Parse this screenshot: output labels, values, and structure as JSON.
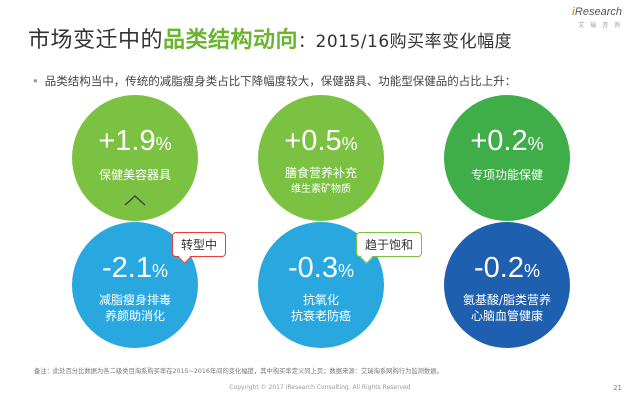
{
  "header": {
    "title_prefix": "市场变迁中的",
    "title_highlight": "品类结构动向",
    "title_suffix": "：2015/16购买率变化幅度",
    "brand": "Research",
    "brand_i": "i",
    "brand_sub": "艾 瑞 咨 询"
  },
  "bullet": {
    "text": "品类结构当中，传统的减脂瘦身类占比下降幅度较大，保健器具、功能型保健品的占比上升："
  },
  "circles": [
    {
      "value": "+1.9",
      "unit": "%",
      "label": "保健美容器具",
      "sublabel": "",
      "color": "#7cc242"
    },
    {
      "value": "+0.5",
      "unit": "%",
      "label": "膳食营养补充",
      "sublabel": "维生素矿物质",
      "color": "#7cc242"
    },
    {
      "value": "+0.2",
      "unit": "%",
      "label": "专项功能保健",
      "sublabel": "",
      "color": "#3fae49"
    },
    {
      "value": "-2.1",
      "unit": "%",
      "label": "减脂瘦身排毒",
      "sublabel": "养颜助消化",
      "color": "#29a8e0"
    },
    {
      "value": "-0.3",
      "unit": "%",
      "label": "抗氧化",
      "sublabel": "抗衰老防癌",
      "color": "#29a8e0"
    },
    {
      "value": "-0.2",
      "unit": "%",
      "label": "氨基酸/脂类营养",
      "sublabel": "心脑血管健康",
      "color": "#1f5fb0"
    }
  ],
  "tags": {
    "transform": "转型中",
    "saturated": "趋于饱和"
  },
  "footer": {
    "note": "备注：此处百分比数据为各二级类目淘系购买率在2015~2016年间的变化幅度，其中购买率定义同上页；数据来源：艾瑞淘系网购行为监测数据。",
    "copyright": "Copyright © 2017 iResearch Consulting. All Rights Reserved",
    "page": "21"
  }
}
